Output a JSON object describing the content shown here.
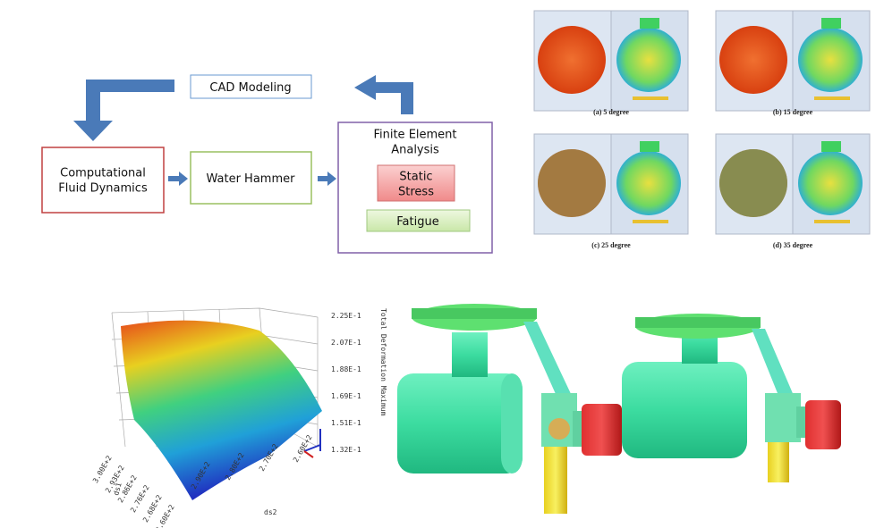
{
  "flowchart": {
    "nodes": [
      {
        "lines": [
          "CAD Modeling"
        ]
      },
      {
        "lines": [
          "Computational",
          "Fluid Dynamics"
        ]
      },
      {
        "lines": [
          "Water Hammer"
        ]
      },
      {
        "lines": [
          "Finite Element",
          "Analysis"
        ]
      },
      {
        "lines": [
          "Static",
          "Stress"
        ]
      },
      {
        "lines": [
          "Fatigue"
        ]
      }
    ]
  },
  "simulations": {
    "captions": [
      "(a) 5 degree",
      "(b) 15 degree",
      "(c) 25 degree",
      "(d) 35 degree"
    ]
  },
  "surface_plot": {
    "z_title": "Total Deformation Maximum",
    "z_ticks": [
      "2.25E-1",
      "2.07E-1",
      "1.88E-1",
      "1.69E-1",
      "1.51E-1",
      "1.32E-1"
    ],
    "x_title": "ds2",
    "x_ticks": [
      "2.90E+2",
      "2.80E+2",
      "2.70E+2",
      "2.60E+2"
    ],
    "y_title": "ds1",
    "y_ticks": [
      "3.00E+2",
      "2.93E+2",
      "2.86E+2",
      "2.76E+2",
      "2.68E+2",
      "2.60E+2"
    ]
  }
}
